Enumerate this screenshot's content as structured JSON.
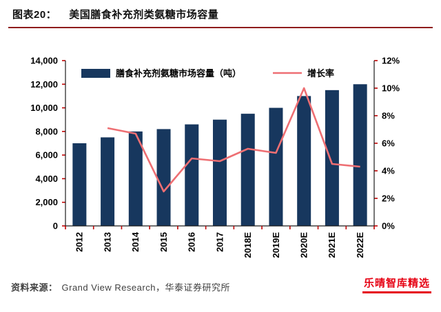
{
  "header": {
    "label": "图表20：",
    "title": "美国膳食补充剂类氨糖市场容量"
  },
  "colors": {
    "bar": "#17375e",
    "line": "#ee6f73",
    "header_rule": "#8e1b1b",
    "axis_tick": "#c00000",
    "watermark": "#e60012",
    "source_text": "#404040"
  },
  "chart_data": {
    "type": "bar",
    "subtype": "bar+line-combo",
    "title": "美国膳食补充剂类氨糖市场容量",
    "categories": [
      "2012",
      "2013",
      "2014",
      "2015",
      "2016",
      "2017",
      "2018E",
      "2019E",
      "2020E",
      "2021E",
      "2022E"
    ],
    "series": [
      {
        "name": "膳食补充剂氨糖市场容量（吨）",
        "type": "bar",
        "axis": "left",
        "color": "#17375e",
        "values": [
          7000,
          7500,
          8000,
          8200,
          8600,
          9000,
          9500,
          10000,
          11000,
          11500,
          12000
        ]
      },
      {
        "name": "增长率",
        "type": "line",
        "axis": "right",
        "color": "#ee6f73",
        "values": [
          null,
          7.1,
          6.7,
          2.5,
          4.9,
          4.7,
          5.6,
          5.3,
          10.0,
          4.5,
          4.3
        ]
      }
    ],
    "left_axis": {
      "min": 0,
      "max": 14000,
      "step": 2000,
      "labels": [
        "0",
        "2,000",
        "4,000",
        "6,000",
        "8,000",
        "10,000",
        "12,000",
        "14,000"
      ]
    },
    "right_axis": {
      "min": 0,
      "max": 12,
      "step": 2,
      "suffix": "%",
      "labels": [
        "0%",
        "2%",
        "4%",
        "6%",
        "8%",
        "10%",
        "12%"
      ]
    },
    "grid": false,
    "legend_position": "top-inside"
  },
  "footer": {
    "source_label": "资料来源：",
    "source_text": "Grand View Research，华泰证券研究所",
    "watermark": "乐晴智库精选"
  }
}
